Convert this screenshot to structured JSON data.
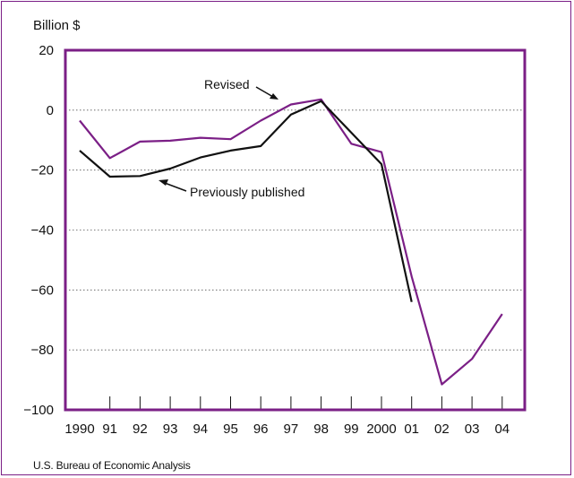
{
  "colors": {
    "frame": "#7b1f86",
    "revised": "#7b1f86",
    "previously_published": "#111111",
    "grid": "#555555"
  },
  "unit_label": "Billion $",
  "source": "U.S. Bureau of Economic Analysis",
  "chart_data": {
    "type": "line",
    "title": "",
    "xlabel": "",
    "ylabel": "Billion $",
    "ylim": [
      -100,
      20
    ],
    "yticks": [
      "20",
      "0",
      "−20",
      "−40",
      "−60",
      "−80",
      "−100"
    ],
    "ytick_values": [
      20,
      0,
      -20,
      -40,
      -60,
      -80,
      -100
    ],
    "categories": [
      "1990",
      "91",
      "92",
      "93",
      "94",
      "95",
      "96",
      "97",
      "98",
      "99",
      "2000",
      "01",
      "02",
      "03",
      "04"
    ],
    "grid": "horizontal dotted",
    "series": [
      {
        "name": "Revised",
        "values": [
          -3.5,
          -16,
          -10.5,
          -10.2,
          -9.2,
          -9.7,
          -3.5,
          1.9,
          3.6,
          -11.2,
          -14.0,
          -55.5,
          -91.5,
          -83.0,
          -68.0
        ]
      },
      {
        "name": "Previously published",
        "values": [
          -13.5,
          -22.2,
          -22.0,
          -19.5,
          -15.8,
          -13.5,
          -12.0,
          -1.5,
          3.0,
          -7.5,
          -18.0,
          -64.0,
          null,
          null,
          null
        ]
      }
    ],
    "annotations": [
      "Revised",
      "Previously published"
    ]
  }
}
